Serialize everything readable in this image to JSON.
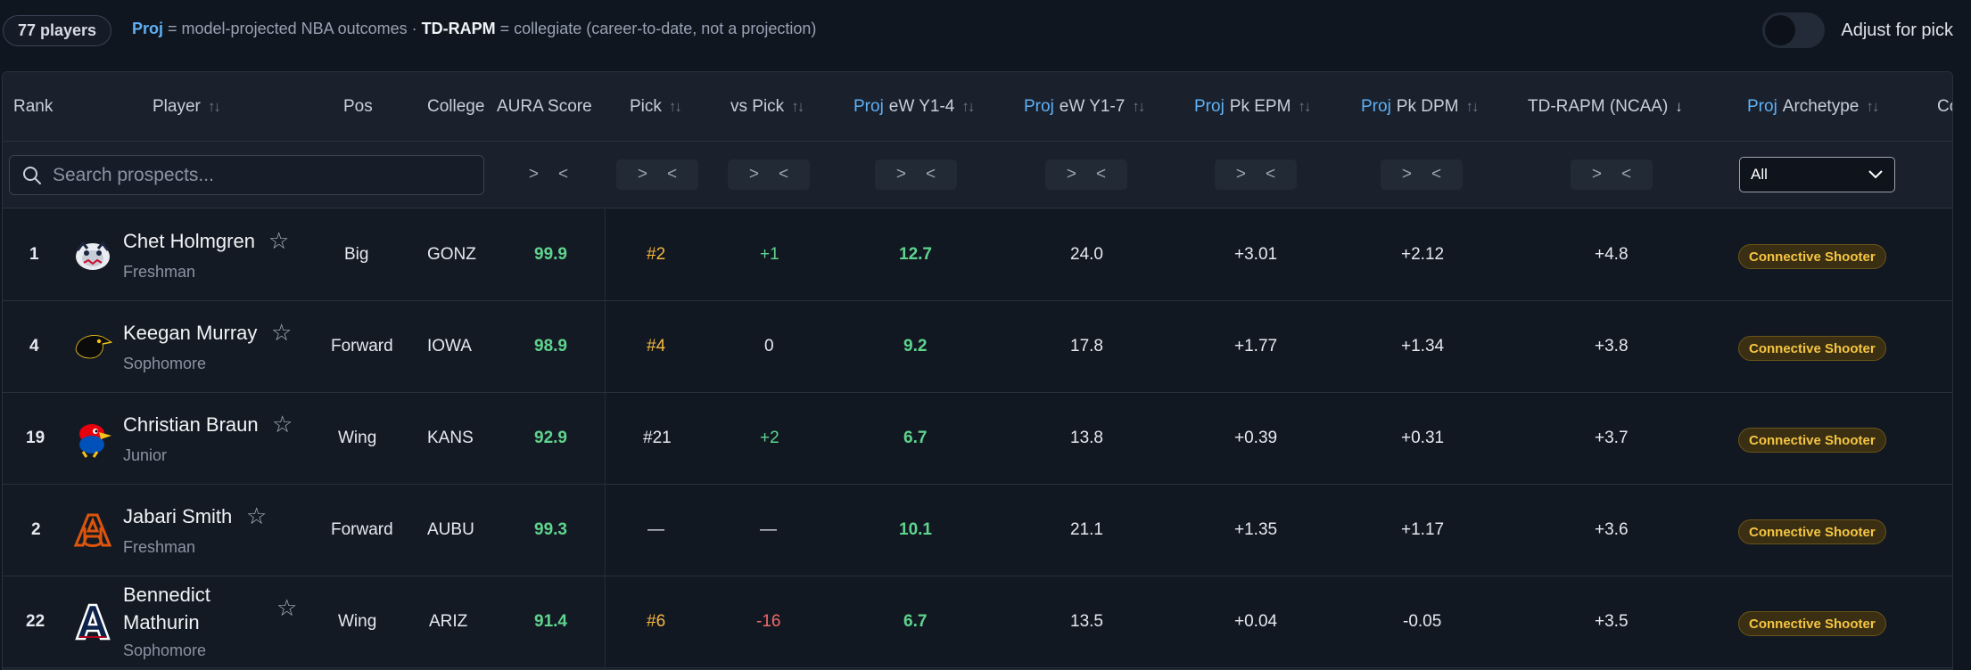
{
  "topbar": {
    "player_count": "77 players",
    "legend_proj": "Proj",
    "legend_proj_desc": " = model-projected NBA outcomes · ",
    "legend_tdr": "TD-RAPM",
    "legend_tdr_desc": " = collegiate (career-to-date, not a projection)",
    "toggle_label": "Adjust for pick"
  },
  "headers": {
    "rank": "Rank",
    "player": "Player",
    "pos": "Pos",
    "college": "College",
    "aura": "AURA Score",
    "pick": "Pick",
    "vs_pick": "vs Pick",
    "proj": "Proj",
    "ew14": "eW Y1-4",
    "ew17": "eW Y1-7",
    "pkepm": "Pk EPM",
    "pkdpm": "Pk DPM",
    "tdrapm": "TD-RAPM (NCAA)",
    "archetype": "Archetype",
    "cut": "Co"
  },
  "filters": {
    "search_placeholder": "Search prospects...",
    "gt": ">",
    "lt": "<",
    "archetype_select": "All"
  },
  "rows": [
    {
      "rank": "1",
      "name": "Chet Holmgren",
      "class": "Freshman",
      "pos": "Big",
      "college": "GONZ",
      "aura": "99.9",
      "pick": "#2",
      "vs_pick": "+1",
      "ew14": "12.7",
      "ew17": "24.0",
      "pkepm": "+3.01",
      "pkdpm": "+2.12",
      "tdrapm": "+4.8",
      "archetype": "Connective Shooter",
      "logo": "bulldog-logo"
    },
    {
      "rank": "4",
      "name": "Keegan Murray",
      "class": "Sophomore",
      "pos": "Forward",
      "college": "IOWA",
      "aura": "98.9",
      "pick": "#4",
      "vs_pick": "0",
      "ew14": "9.2",
      "ew17": "17.8",
      "pkepm": "+1.77",
      "pkdpm": "+1.34",
      "tdrapm": "+3.8",
      "archetype": "Connective Shooter",
      "logo": "hawkeye-logo"
    },
    {
      "rank": "19",
      "name": "Christian Braun",
      "class": "Junior",
      "pos": "Wing",
      "college": "KANS",
      "aura": "92.9",
      "pick": "#21",
      "vs_pick": "+2",
      "ew14": "6.7",
      "ew17": "13.8",
      "pkepm": "+0.39",
      "pkdpm": "+0.31",
      "tdrapm": "+3.7",
      "archetype": "Connective Shooter",
      "logo": "jayhawk-logo"
    },
    {
      "rank": "2",
      "name": "Jabari Smith",
      "class": "Freshman",
      "pos": "Forward",
      "college": "AUBU",
      "aura": "99.3",
      "pick": "—",
      "vs_pick": "—",
      "ew14": "10.1",
      "ew17": "21.1",
      "pkepm": "+1.35",
      "pkdpm": "+1.17",
      "tdrapm": "+3.6",
      "archetype": "Connective Shooter",
      "logo": "au-logo"
    },
    {
      "rank": "22",
      "name": "Bennedict Mathurin",
      "class": "Sophomore",
      "pos": "Wing",
      "college": "ARIZ",
      "aura": "91.4",
      "pick": "#6",
      "vs_pick": "-16",
      "ew14": "6.7",
      "ew17": "13.5",
      "pkepm": "+0.04",
      "pkdpm": "-0.05",
      "tdrapm": "+3.5",
      "archetype": "Connective Shooter",
      "logo": "a-logo"
    }
  ],
  "colors": {
    "green": "#5fd48e",
    "gold": "#f5b83d",
    "red": "#f06b6b",
    "proj_blue": "#5fb0f5"
  }
}
